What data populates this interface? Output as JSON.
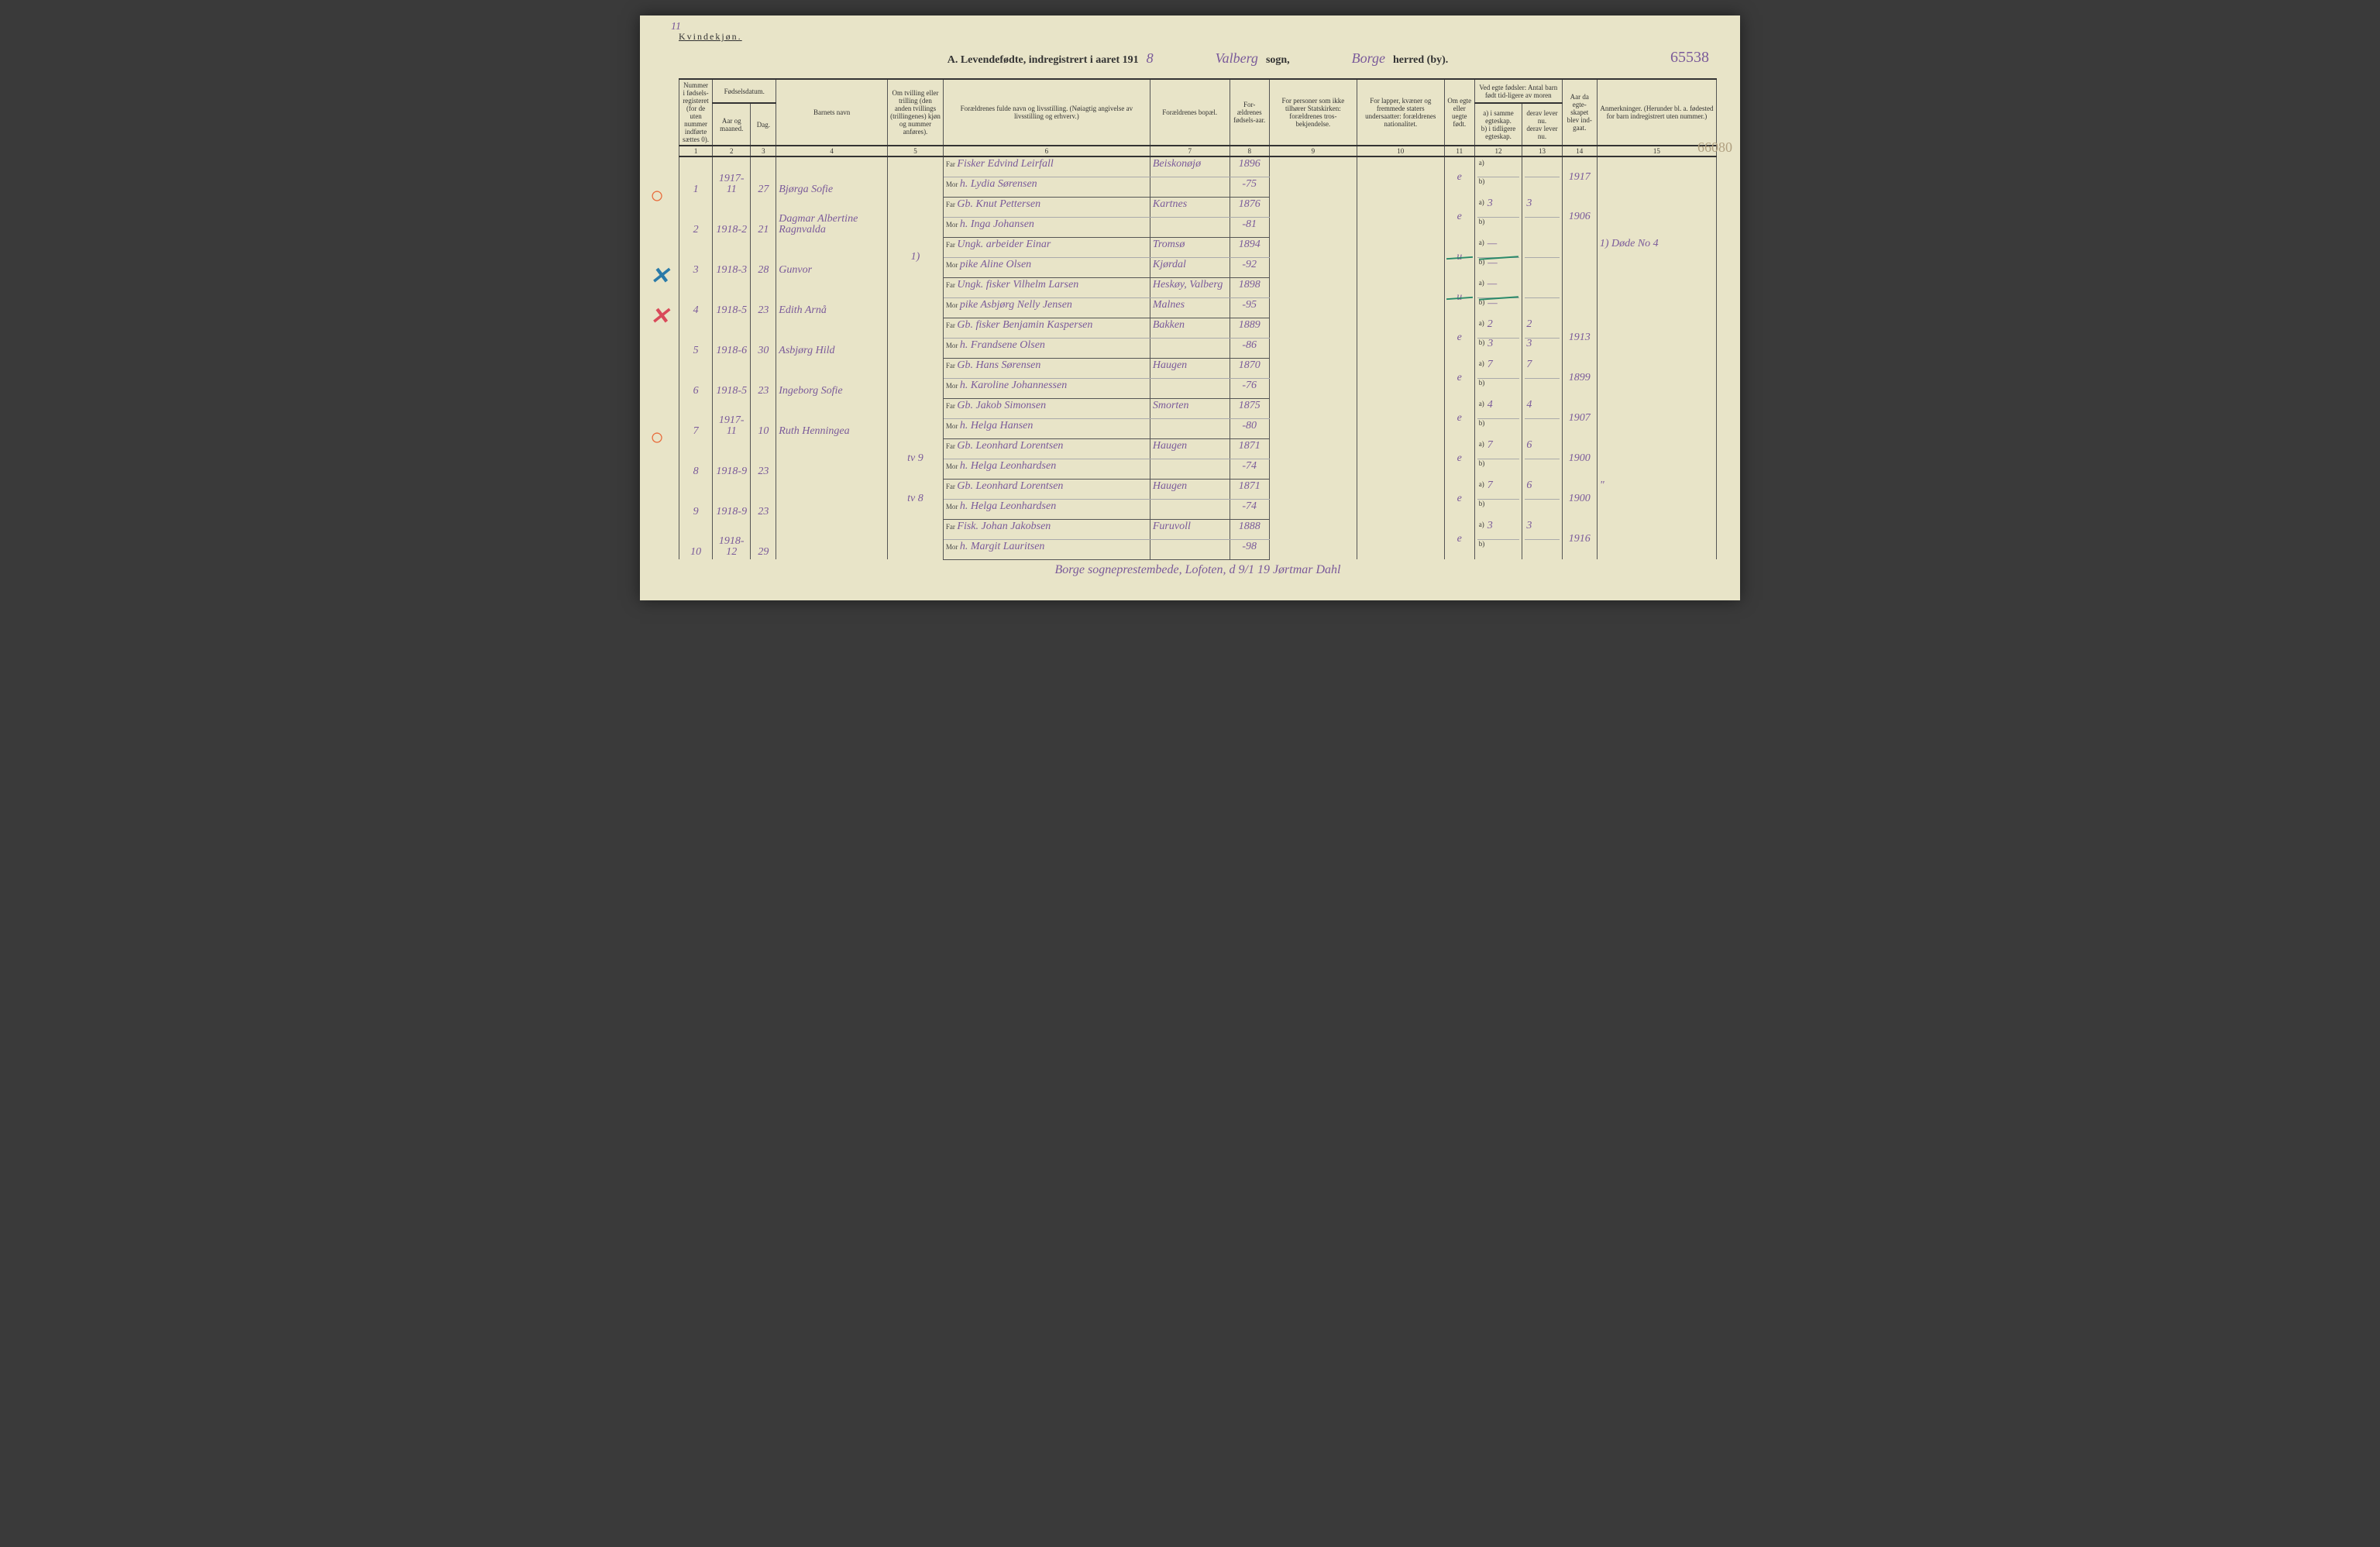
{
  "page_number_tl": "11",
  "gender_label": "Kvindekjøn.",
  "title": {
    "prefix": "A. Levendefødte, indregistrert i aaret 191",
    "year_suffix": "8",
    "sogn_value": "Valberg",
    "sogn_label": "sogn,",
    "herred_value": "Borge",
    "herred_label": "herred (by).",
    "page_ref": "65538"
  },
  "side_note_1": "66080",
  "headers": {
    "c1": "Nummer i fødsels-registeret (for de uten nummer indførte sættes 0).",
    "c2_top": "Fødselsdatum.",
    "c2a": "Aar og maaned.",
    "c2b": "Dag.",
    "c4": "Barnets navn",
    "c5": "Om tvilling eller trilling (den anden tvillings (trillingenes) kjøn og nummer anføres).",
    "c6": "Forældrenes fulde navn og livsstilling. (Nøiagtig angivelse av livsstilling og erhverv.)",
    "c7": "Forældrenes bopæl.",
    "c8": "For-ældrenes fødsels-aar.",
    "c9": "For personer som ikke tilhører Statskirken: forældrenes tros-bekjendelse.",
    "c10": "For lapper, kvæner og fremmede staters undersaatter: forældrenes nationalitet.",
    "c11": "Om egte eller uegte født.",
    "c12_top": "Ved egte fødsler: Antal barn født tid-ligere av moren",
    "c12a": "a) i samme egteskap.",
    "c12b": "b) i tidligere egteskap.",
    "c13a": "derav lever nu.",
    "c13b": "derav lever nu.",
    "c14": "Aar da egte-skapet blev ind-gaat.",
    "c15": "Anmerkninger. (Herunder bl. a. fødested for barn indregistrert uten nummer.)"
  },
  "colnums": [
    "1",
    "2",
    "3",
    "4",
    "5",
    "6",
    "7",
    "8",
    "9",
    "10",
    "11",
    "12",
    "13",
    "14",
    "15"
  ],
  "far_label": "Far",
  "mor_label": "Mor",
  "rows": [
    {
      "mark": "○",
      "mark_class": "circle-red",
      "num": "1",
      "ym": "1917-11",
      "day": "27",
      "name": "Bjørga Sofie",
      "twin": "",
      "far": "Fisker Edvind Leirfall",
      "mor": "h. Lydia Sørensen",
      "bopael": "Beiskonøjø",
      "faar": "1896",
      "maar": "-75",
      "egte": "e",
      "a12": "",
      "b12": "",
      "a13": "",
      "b13": "",
      "c14": "1917",
      "c15": ""
    },
    {
      "mark": "",
      "mark_class": "",
      "num": "2",
      "ym": "1918-2",
      "day": "21",
      "name": "Dagmar Albertine Ragnvalda",
      "twin": "",
      "far": "Gb. Knut Pettersen",
      "mor": "h. Inga Johansen",
      "bopael": "Kartnes",
      "faar": "1876",
      "maar": "-81",
      "egte": "e",
      "a12": "3",
      "b12": "",
      "a13": "3",
      "b13": "",
      "c14": "1906",
      "c15": ""
    },
    {
      "mark": "✕",
      "mark_class": "x-blue",
      "num": "3",
      "ym": "1918-3",
      "day": "28",
      "name": "Gunvor",
      "twin": "1)",
      "far": "Ungk. arbeider Einar",
      "mor": "pike Aline Olsen",
      "bopael": "Tromsø / Kjørdal",
      "faar": "1894",
      "maar": "-92",
      "egte": "u",
      "a12": "—",
      "b12": "—",
      "a13": "",
      "b13": "",
      "c14": "",
      "c15": "1) Døde No 4",
      "strike": true
    },
    {
      "mark": "✕",
      "mark_class": "x-red",
      "num": "4",
      "ym": "1918-5",
      "day": "23",
      "name": "Edith Arnå",
      "twin": "",
      "far": "Ungk. fisker Vilhelm Larsen",
      "mor": "pike Asbjørg Nelly Jensen",
      "bopael": "Heskøy, Valberg / Malnes",
      "faar": "1898",
      "maar": "-95",
      "egte": "u",
      "a12": "—",
      "b12": "—",
      "a13": "",
      "b13": "",
      "c14": "",
      "c15": "",
      "strike": true
    },
    {
      "mark": "",
      "mark_class": "",
      "num": "5",
      "ym": "1918-6",
      "day": "30",
      "name": "Asbjørg Hild",
      "twin": "",
      "far": "Gb. fisker Benjamin Kaspersen",
      "mor": "h. Frandsene Olsen",
      "bopael": "Bakken",
      "faar": "1889",
      "maar": "-86",
      "egte": "e",
      "a12": "2",
      "b12": "3",
      "a13": "2",
      "b13": "3",
      "c14": "1913",
      "c15": ""
    },
    {
      "mark": "",
      "mark_class": "",
      "num": "6",
      "ym": "1918-5",
      "day": "23",
      "name": "Ingeborg Sofie",
      "twin": "",
      "far": "Gb. Hans Sørensen",
      "mor": "h. Karoline Johannessen",
      "bopael": "Haugen",
      "faar": "1870",
      "maar": "-76",
      "egte": "e",
      "a12": "7",
      "b12": "",
      "a13": "7",
      "b13": "",
      "c14": "1899",
      "c15": ""
    },
    {
      "mark": "○",
      "mark_class": "circle-red",
      "num": "7",
      "ym": "1917-11",
      "day": "10",
      "name": "Ruth Henningea",
      "twin": "",
      "far": "Gb. Jakob Simonsen",
      "mor": "h. Helga Hansen",
      "bopael": "Smorten",
      "faar": "1875",
      "maar": "-80",
      "egte": "e",
      "a12": "4",
      "b12": "",
      "a13": "4",
      "b13": "",
      "c14": "1907",
      "c15": ""
    },
    {
      "mark": "",
      "mark_class": "",
      "num": "8",
      "ym": "1918-9",
      "day": "23",
      "name": "",
      "twin": "tv 9",
      "far": "Gb. Leonhard Lorentsen",
      "mor": "h. Helga Leonhardsen",
      "bopael": "Haugen",
      "faar": "1871",
      "maar": "-74",
      "egte": "e",
      "a12": "7",
      "b12": "",
      "a13": "6",
      "b13": "",
      "c14": "1900",
      "c15": ""
    },
    {
      "mark": "",
      "mark_class": "",
      "num": "9",
      "ym": "1918-9",
      "day": "23",
      "name": "",
      "twin": "tv 8",
      "far": "Gb. Leonhard Lorentsen",
      "mor": "h. Helga Leonhardsen",
      "bopael": "Haugen",
      "faar": "1871",
      "maar": "-74",
      "egte": "e",
      "a12": "7",
      "b12": "",
      "a13": "6",
      "b13": "",
      "c14": "1900",
      "c15": "\""
    },
    {
      "mark": "",
      "mark_class": "",
      "num": "10",
      "ym": "1918-12",
      "day": "29",
      "name": "",
      "twin": "",
      "far": "Fisk. Johan Jakobsen",
      "mor": "h. Margit Lauritsen",
      "bopael": "Furuvoll",
      "faar": "1888",
      "maar": "-98",
      "egte": "e",
      "a12": "3",
      "b12": "",
      "a13": "3",
      "b13": "",
      "c14": "1916",
      "c15": ""
    }
  ],
  "footer_note": "Borge sogneprestembede, Lofoten, d 9/1 19  Jørtmar Dahl"
}
